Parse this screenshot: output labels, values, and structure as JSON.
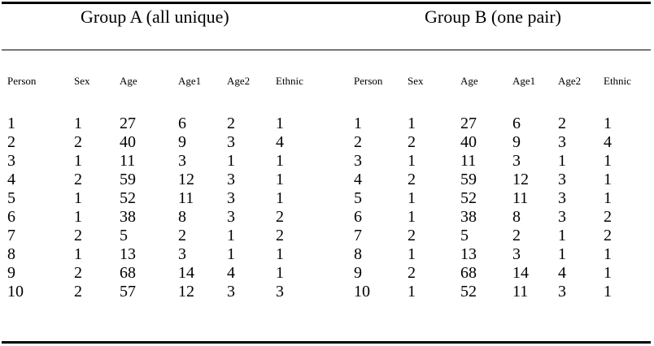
{
  "groups": [
    {
      "title": "Group A (all unique)"
    },
    {
      "title": "Group B (one pair)"
    }
  ],
  "columns": [
    "Person",
    "Sex",
    "Age",
    "Age1",
    "Age2",
    "Ethnic"
  ],
  "group_a_rows": [
    [
      "1",
      "1",
      "27",
      "6",
      "2",
      "1"
    ],
    [
      "2",
      "2",
      "40",
      "9",
      "3",
      "4"
    ],
    [
      "3",
      "1",
      "11",
      "3",
      "1",
      "1"
    ],
    [
      "4",
      "2",
      "59",
      "12",
      "3",
      "1"
    ],
    [
      "5",
      "1",
      "52",
      "11",
      "3",
      "1"
    ],
    [
      "6",
      "1",
      "38",
      "8",
      "3",
      "2"
    ],
    [
      "7",
      "2",
      "5",
      "2",
      "1",
      "2"
    ],
    [
      "8",
      "1",
      "13",
      "3",
      "1",
      "1"
    ],
    [
      "9",
      "2",
      "68",
      "14",
      "4",
      "1"
    ],
    [
      "10",
      "2",
      "57",
      "12",
      "3",
      "3"
    ]
  ],
  "group_b_rows": [
    [
      "1",
      "1",
      "27",
      "6",
      "2",
      "1"
    ],
    [
      "2",
      "2",
      "40",
      "9",
      "3",
      "4"
    ],
    [
      "3",
      "1",
      "11",
      "3",
      "1",
      "1"
    ],
    [
      "4",
      "2",
      "59",
      "12",
      "3",
      "1"
    ],
    [
      "5",
      "1",
      "52",
      "11",
      "3",
      "1"
    ],
    [
      "6",
      "1",
      "38",
      "8",
      "3",
      "2"
    ],
    [
      "7",
      "2",
      "5",
      "2",
      "1",
      "2"
    ],
    [
      "8",
      "1",
      "13",
      "3",
      "1",
      "1"
    ],
    [
      "9",
      "2",
      "68",
      "14",
      "4",
      "1"
    ],
    [
      "10",
      "1",
      "52",
      "11",
      "3",
      "1"
    ]
  ]
}
